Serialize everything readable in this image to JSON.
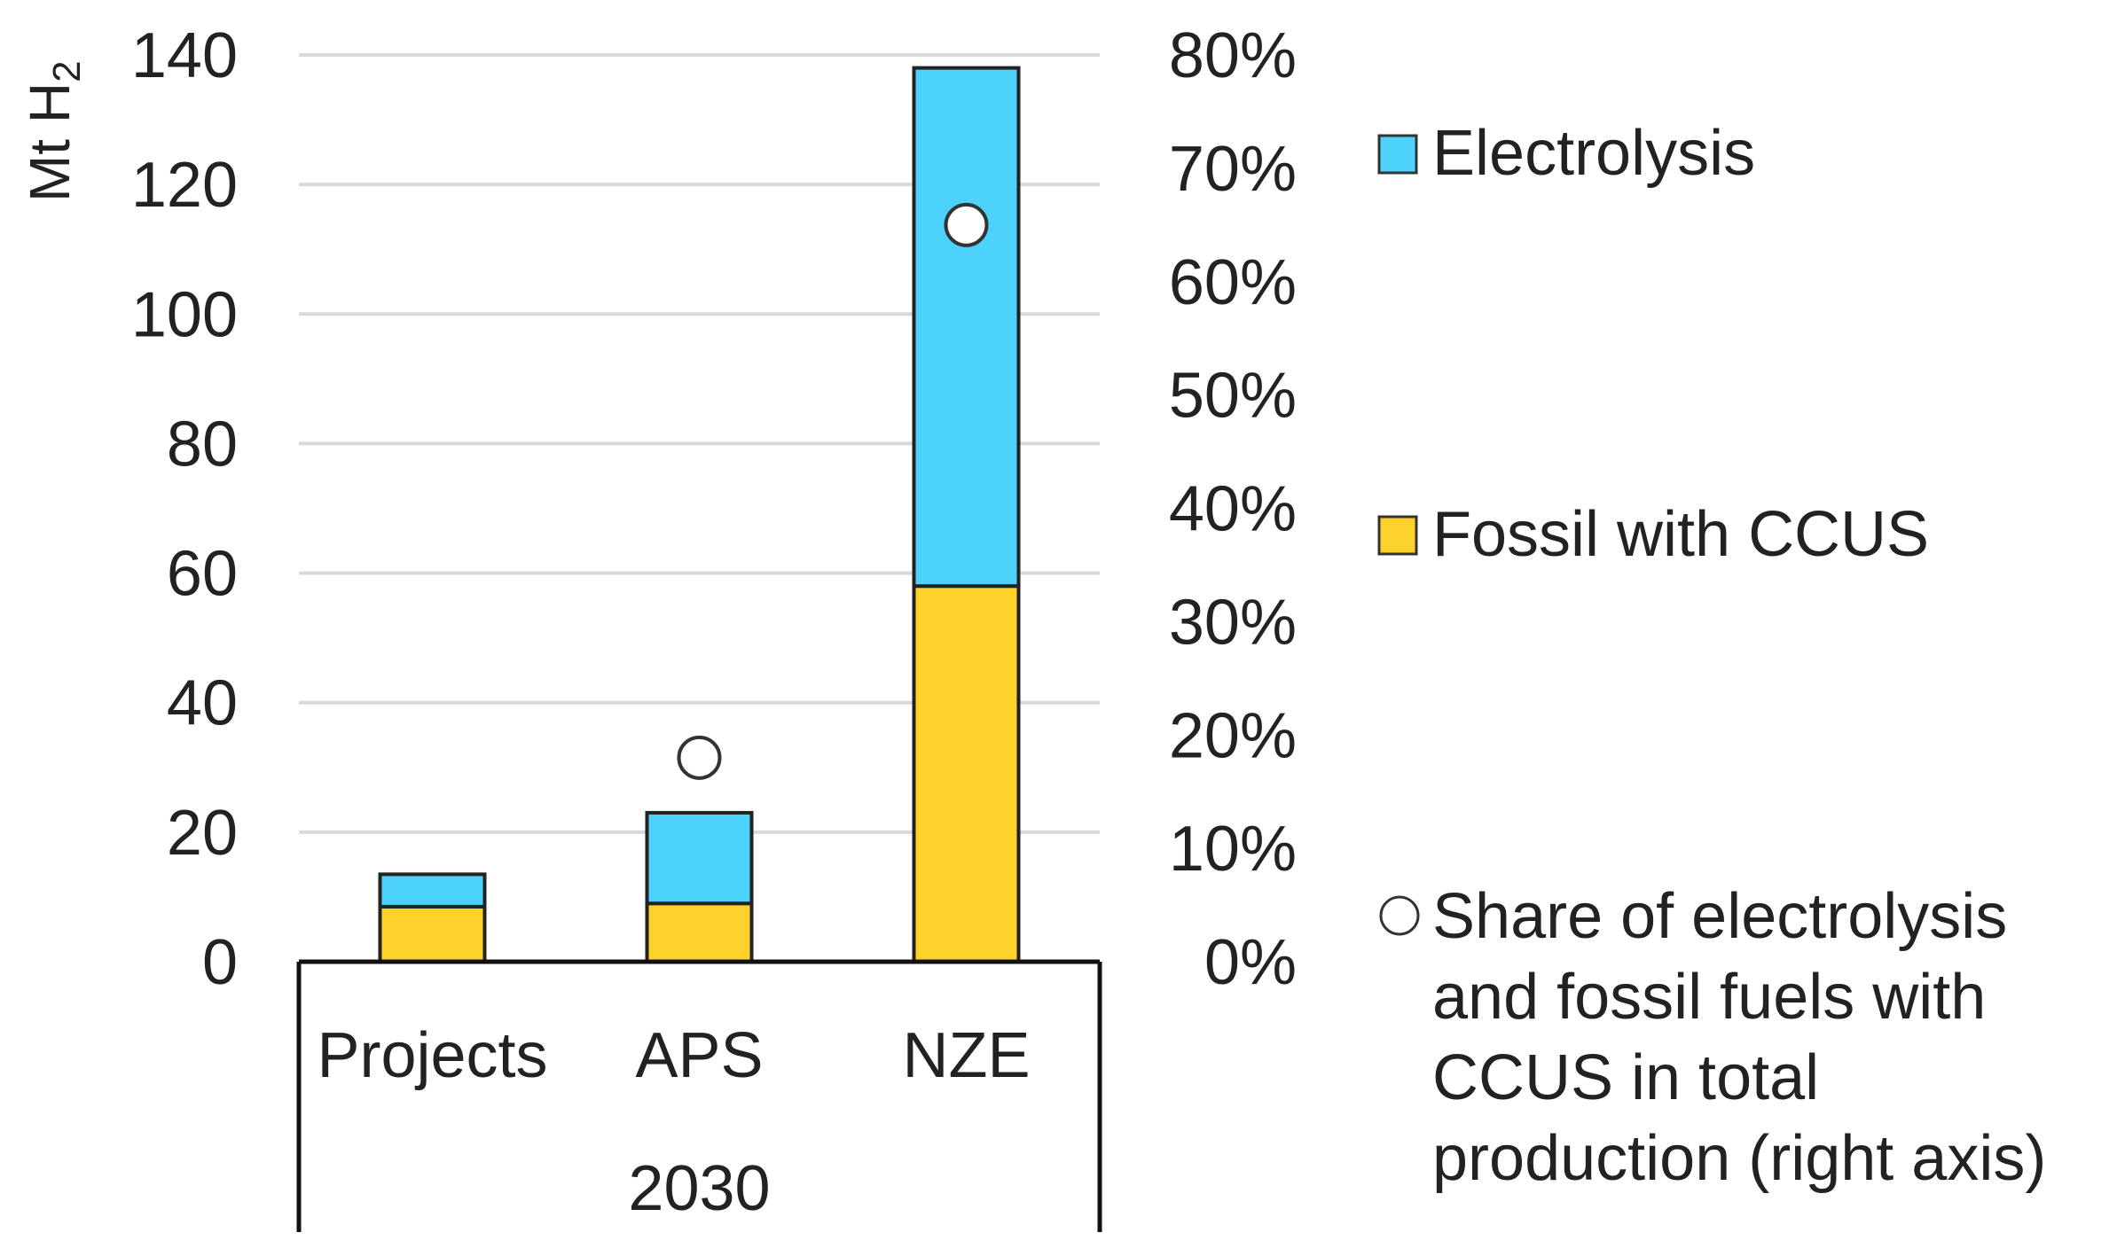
{
  "chart_data": {
    "type": "bar",
    "stacked": true,
    "categories": [
      "Projects",
      "APS",
      "NZE"
    ],
    "group_label": "2030",
    "series": [
      {
        "name": "Fossil with CCUS",
        "color": "#FDD22A",
        "values": [
          8.5,
          9,
          58
        ]
      },
      {
        "name": "Electrolysis",
        "color": "#4DD2FC",
        "values": [
          5,
          14,
          80
        ]
      }
    ],
    "secondary_series": {
      "name": "Share of electrolysis and fossil fuels with CCUS in total production (right axis)",
      "legend_lines": [
        "Share of electrolysis",
        "and fossil fuels with",
        "CCUS in total",
        "production (right axis)"
      ],
      "type": "scatter",
      "marker": "circle",
      "values": [
        null,
        18,
        65
      ]
    },
    "ylabel": "Mt H",
    "ylabel_subscript": "2",
    "ylim": [
      0,
      140
    ],
    "yticks": [
      "0",
      "20",
      "40",
      "60",
      "80",
      "100",
      "120",
      "140"
    ],
    "y2lim": [
      0,
      80
    ],
    "y2ticks": [
      "0%",
      "10%",
      "20%",
      "30%",
      "40%",
      "50%",
      "60%",
      "70%",
      "80%"
    ],
    "grid": true,
    "legend_position": "right"
  }
}
